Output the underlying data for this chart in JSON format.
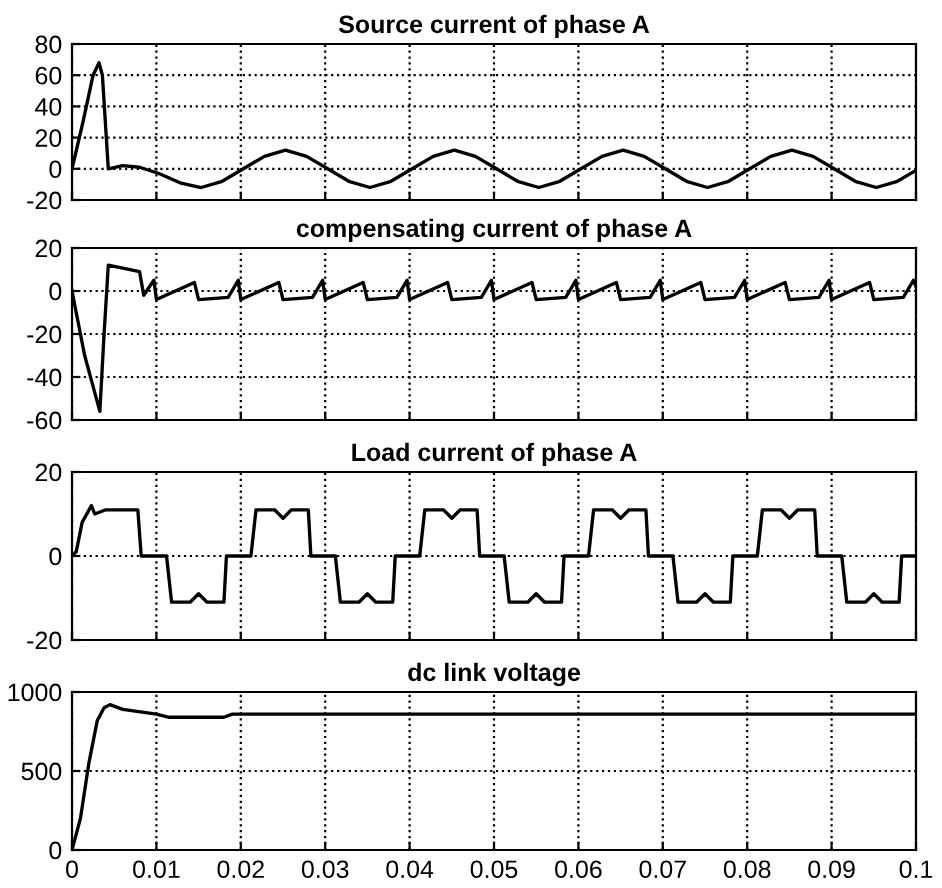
{
  "chart_data": [
    {
      "type": "line",
      "title": "Source current of phase A",
      "color": "#000000",
      "grid": true,
      "tick_labels": "y",
      "xlim": [
        0,
        0.1
      ],
      "ylim": [
        -20,
        80
      ],
      "yticks": [
        -20,
        0,
        20,
        40,
        60,
        80
      ],
      "x": [
        0,
        0.0013,
        0.0025,
        0.0032,
        0.0036,
        0.0043,
        0.006,
        0.008,
        0.0103,
        0.0128,
        0.0153,
        0.0178,
        0.0203,
        0.0228,
        0.0253,
        0.0278,
        0.0303,
        0.0328,
        0.0353,
        0.0378,
        0.0403,
        0.0428,
        0.0453,
        0.0478,
        0.0503,
        0.0528,
        0.0553,
        0.0578,
        0.0603,
        0.0628,
        0.0653,
        0.0678,
        0.0703,
        0.0728,
        0.0753,
        0.0778,
        0.0803,
        0.0828,
        0.0853,
        0.0878,
        0.0903,
        0.0928,
        0.0953,
        0.0978,
        0.1
      ],
      "values": [
        0,
        30,
        60,
        68,
        60,
        0,
        2,
        1,
        -3,
        -9,
        -12,
        -8,
        0,
        8,
        12,
        8,
        0,
        -8,
        -12,
        -8,
        0,
        8,
        12,
        8,
        0,
        -8,
        -12,
        -8,
        0,
        8,
        12,
        8,
        0,
        -8,
        -12,
        -8,
        0,
        8,
        12,
        8,
        0,
        -8,
        -12,
        -8,
        -1
      ]
    },
    {
      "type": "line",
      "title": "compensating current of phase A",
      "color": "#000000",
      "grid": true,
      "tick_labels": "y",
      "xlim": [
        0,
        0.1
      ],
      "ylim": [
        -60,
        20
      ],
      "yticks": [
        -60,
        -40,
        -20,
        0,
        20
      ],
      "x": [
        0,
        0.0015,
        0.0033,
        0.0038,
        0.0043,
        0.008,
        0.0085,
        0.0097,
        0.01,
        0.0145,
        0.015,
        0.0185,
        0.0197,
        0.02,
        0.0245,
        0.025,
        0.0285,
        0.0297,
        0.03,
        0.0345,
        0.035,
        0.0385,
        0.0397,
        0.04,
        0.0445,
        0.045,
        0.0485,
        0.0497,
        0.05,
        0.0545,
        0.055,
        0.0585,
        0.0597,
        0.06,
        0.0645,
        0.065,
        0.0685,
        0.0697,
        0.07,
        0.0745,
        0.075,
        0.0785,
        0.0797,
        0.08,
        0.0845,
        0.085,
        0.0885,
        0.0897,
        0.09,
        0.0945,
        0.095,
        0.0985,
        0.0997,
        0.1
      ],
      "values": [
        0,
        -30,
        -56,
        -20,
        12,
        9,
        -2,
        5,
        -4,
        4,
        -4,
        -3,
        5,
        -4,
        4,
        -4,
        -3,
        5,
        -4,
        4,
        -4,
        -3,
        5,
        -4,
        4,
        -4,
        -3,
        5,
        -4,
        4,
        -4,
        -3,
        5,
        -4,
        4,
        -4,
        -3,
        5,
        -4,
        4,
        -4,
        -3,
        5,
        -4,
        4,
        -4,
        -3,
        5,
        -4,
        4,
        -4,
        -3,
        5,
        2
      ]
    },
    {
      "type": "line",
      "title": "Load current of phase A",
      "color": "#000000",
      "grid": true,
      "tick_labels": "y",
      "xlim": [
        0,
        0.1
      ],
      "ylim": [
        -20,
        20
      ],
      "yticks": [
        -20,
        0,
        20
      ],
      "x": [
        0,
        0.0005,
        0.0012,
        0.0023,
        0.0027,
        0.004,
        0.0078,
        0.0082,
        0.0112,
        0.0118,
        0.014,
        0.015,
        0.016,
        0.018,
        0.0183,
        0.0212,
        0.0218,
        0.024,
        0.025,
        0.026,
        0.028,
        0.0283,
        0.0312,
        0.0318,
        0.034,
        0.035,
        0.036,
        0.038,
        0.0383,
        0.0412,
        0.0418,
        0.044,
        0.045,
        0.046,
        0.048,
        0.0483,
        0.0512,
        0.0518,
        0.054,
        0.055,
        0.056,
        0.058,
        0.0583,
        0.0612,
        0.0618,
        0.064,
        0.065,
        0.066,
        0.068,
        0.0683,
        0.0712,
        0.0718,
        0.074,
        0.075,
        0.076,
        0.078,
        0.0783,
        0.0812,
        0.0818,
        0.084,
        0.085,
        0.086,
        0.088,
        0.0883,
        0.0912,
        0.0918,
        0.094,
        0.095,
        0.096,
        0.098,
        0.0983,
        0.1
      ],
      "values": [
        0,
        1,
        8,
        12,
        10,
        11,
        11,
        0,
        0,
        -11,
        -11,
        -9,
        -11,
        -11,
        0,
        0,
        11,
        11,
        9,
        11,
        11,
        0,
        0,
        -11,
        -11,
        -9,
        -11,
        -11,
        0,
        0,
        11,
        11,
        9,
        11,
        11,
        0,
        0,
        -11,
        -11,
        -9,
        -11,
        -11,
        0,
        0,
        11,
        11,
        9,
        11,
        11,
        0,
        0,
        -11,
        -11,
        -9,
        -11,
        -11,
        0,
        0,
        11,
        11,
        9,
        11,
        11,
        0,
        0,
        -11,
        -11,
        -9,
        -11,
        -11,
        0,
        0
      ]
    },
    {
      "type": "line",
      "title": "dc link voltage",
      "color": "#000000",
      "grid": true,
      "xlim": [
        0,
        0.1
      ],
      "xticks": [
        0,
        0.01,
        0.02,
        0.03,
        0.04,
        0.05,
        0.06,
        0.07,
        0.08,
        0.09,
        0.1
      ],
      "ylim": [
        0,
        1000
      ],
      "yticks": [
        0,
        500,
        1000
      ],
      "x": [
        0,
        0.001,
        0.002,
        0.003,
        0.0038,
        0.0045,
        0.006,
        0.01,
        0.0115,
        0.018,
        0.019,
        0.1
      ],
      "values": [
        0,
        200,
        550,
        820,
        900,
        920,
        890,
        860,
        840,
        840,
        860,
        860
      ]
    }
  ]
}
